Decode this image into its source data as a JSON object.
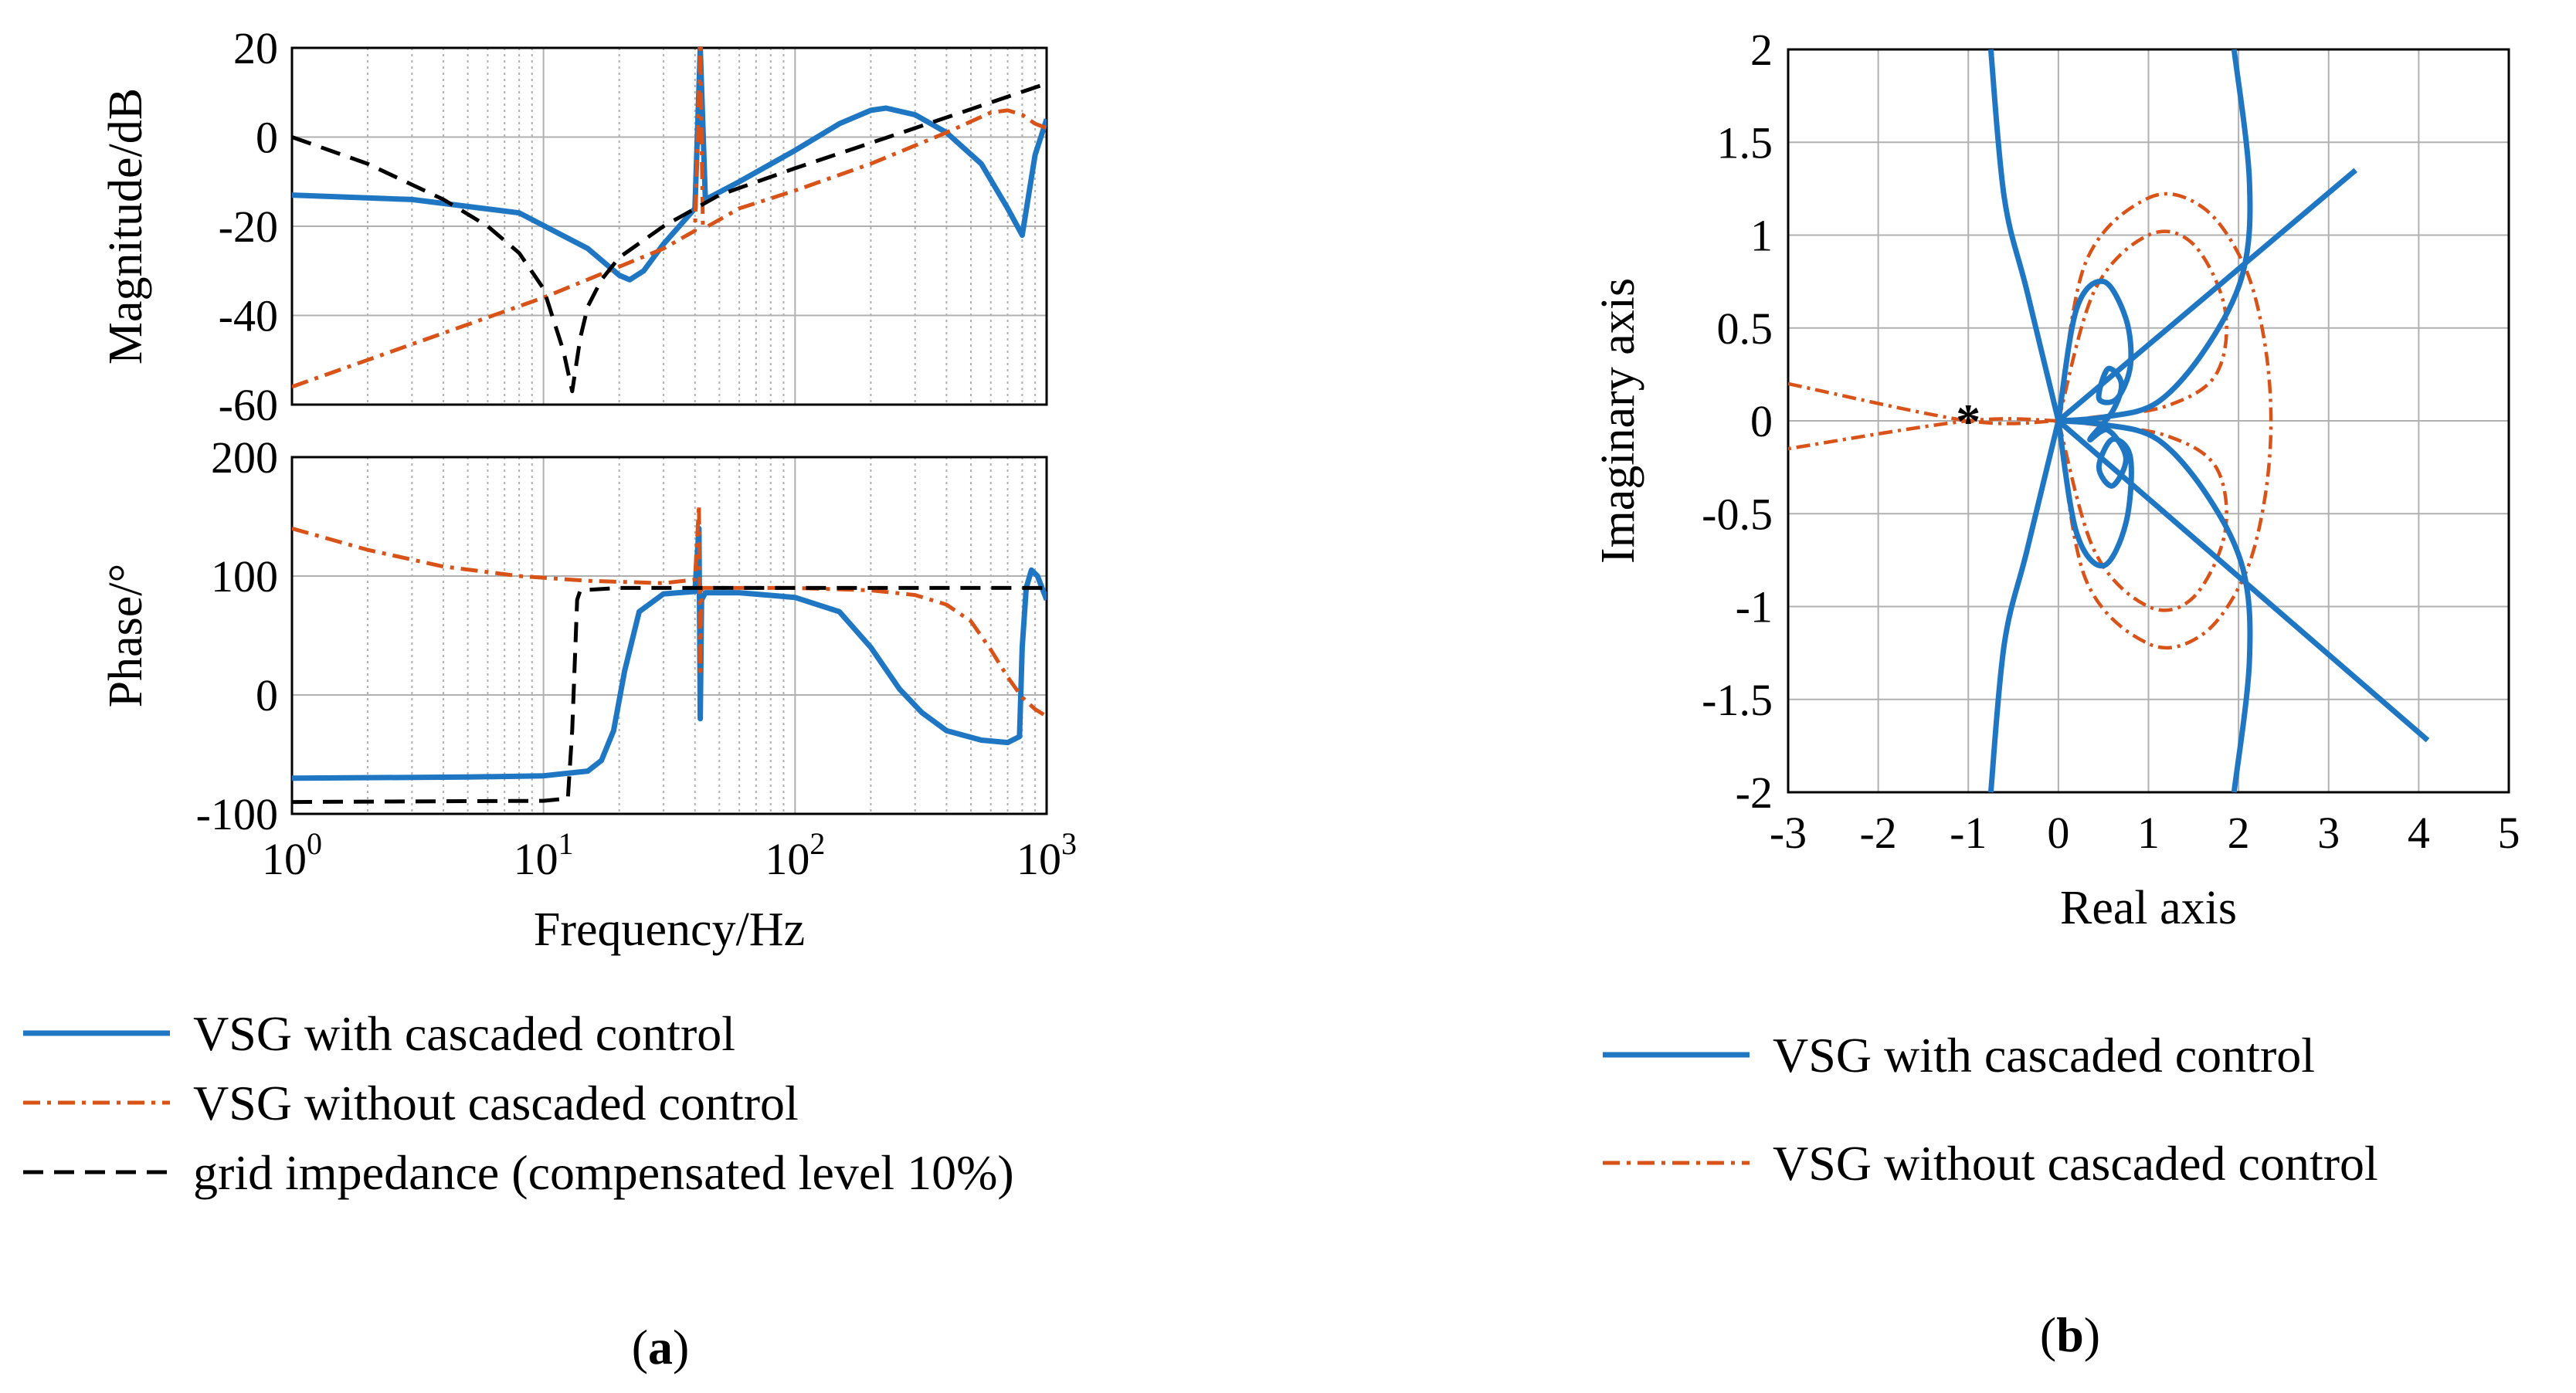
{
  "colors": {
    "blue": "#1f77c4",
    "orange": "#d95319",
    "black": "#000000",
    "grid": "#b0b0b0"
  },
  "chart_data": [
    {
      "type": "line",
      "subplot": "bode-magnitude",
      "panel": "(a)",
      "xscale": "log",
      "xlim": [
        1,
        1000
      ],
      "ylim": [
        -60,
        20
      ],
      "xticks": [
        1,
        10,
        100,
        1000
      ],
      "yticks": [
        20,
        0,
        -20,
        -40,
        -60
      ],
      "ytick_labels": [
        "20",
        "0",
        "-20",
        "-40",
        "-60"
      ],
      "ylabel": "Magnitude/dB",
      "xlabel": "",
      "grid": true,
      "series": [
        {
          "name": "VSG with cascaded control",
          "color": "blue",
          "style": "solid",
          "x": [
            1,
            3,
            8,
            15,
            20,
            22,
            25,
            30,
            40,
            42,
            44,
            60,
            100,
            150,
            200,
            230,
            300,
            400,
            550,
            700,
            800,
            900,
            1000
          ],
          "y": [
            -13,
            -14,
            -17,
            -25,
            -31,
            -32,
            -30,
            -24,
            -16,
            20,
            -14,
            -10,
            -3,
            3,
            6,
            6.5,
            5,
            1,
            -6,
            -16,
            -22,
            -4,
            4
          ]
        },
        {
          "name": "VSG without cascaded control",
          "color": "orange",
          "style": "dashdot",
          "x": [
            1,
            10,
            30,
            40,
            42,
            43,
            45,
            60,
            100,
            200,
            400,
            600,
            700,
            800,
            900,
            1000
          ],
          "y": [
            -56,
            -36,
            -25,
            -21,
            20,
            -20,
            -20,
            -16,
            -12,
            -6,
            1,
            5.5,
            6,
            5,
            3,
            2
          ]
        },
        {
          "name": "grid impedance (compensated level 10%)",
          "color": "black",
          "style": "dashed",
          "x": [
            1,
            2,
            4,
            6,
            8,
            10,
            12,
            13,
            14,
            15,
            17,
            20,
            30,
            50,
            100,
            300,
            1000
          ],
          "y": [
            0,
            -6,
            -14,
            -20,
            -26,
            -34,
            -48,
            -57,
            -45,
            -38,
            -32,
            -27,
            -20,
            -13,
            -7,
            2,
            12
          ]
        }
      ]
    },
    {
      "type": "line",
      "subplot": "bode-phase",
      "panel": "(a)",
      "xscale": "log",
      "xlim": [
        1,
        1000
      ],
      "ylim": [
        -100,
        200
      ],
      "xticks": [
        1,
        10,
        100,
        1000
      ],
      "xtick_bases": [
        "10",
        "10",
        "10",
        "10"
      ],
      "xtick_exponents": [
        "0",
        "1",
        "2",
        "3"
      ],
      "yticks": [
        200,
        100,
        0,
        -100
      ],
      "ytick_labels": [
        "200",
        "100",
        "0",
        "-100"
      ],
      "ylabel": "Phase/°",
      "xlabel": "Frequency/Hz",
      "grid": true,
      "series": [
        {
          "name": "VSG with cascaded control",
          "color": "blue",
          "style": "solid",
          "x": [
            1,
            5,
            10,
            15,
            17,
            19,
            21,
            24,
            30,
            40,
            41.5,
            42,
            42.5,
            44,
            60,
            100,
            150,
            200,
            260,
            320,
            400,
            550,
            700,
            780,
            800,
            830,
            870,
            920,
            1000
          ],
          "y": [
            -70,
            -69,
            -68,
            -64,
            -55,
            -30,
            20,
            70,
            85,
            87,
            140,
            -20,
            80,
            86,
            86,
            82,
            70,
            40,
            5,
            -15,
            -30,
            -38,
            -40,
            -35,
            40,
            90,
            105,
            100,
            80
          ]
        },
        {
          "name": "VSG without cascaded control",
          "color": "orange",
          "style": "dashdot",
          "x": [
            1,
            2,
            4,
            8,
            15,
            30,
            40,
            41.5,
            42,
            42.5,
            44,
            60,
            100,
            200,
            300,
            400,
            500,
            600,
            700,
            800,
            900,
            1000
          ],
          "y": [
            140,
            122,
            108,
            100,
            96,
            94,
            97,
            160,
            20,
            90,
            90,
            90,
            90,
            88,
            84,
            76,
            62,
            38,
            15,
            -2,
            -12,
            -18
          ]
        },
        {
          "name": "grid impedance (compensated level 10%)",
          "color": "black",
          "style": "dashed",
          "x": [
            1,
            10,
            12.5,
            13,
            13.6,
            14,
            20,
            100,
            1000
          ],
          "y": [
            -90,
            -89,
            -87,
            -30,
            80,
            88,
            90,
            90,
            90
          ]
        }
      ]
    },
    {
      "type": "line",
      "subplot": "nyquist",
      "panel": "(b)",
      "xlim": [
        -3,
        5
      ],
      "ylim": [
        -2,
        2
      ],
      "xticks": [
        -3,
        -2,
        -1,
        0,
        1,
        2,
        3,
        4,
        5
      ],
      "xtick_labels": [
        "-3",
        "-2",
        "-1",
        "0",
        "1",
        "2",
        "3",
        "4",
        "5"
      ],
      "yticks": [
        2,
        1.5,
        1,
        0.5,
        0,
        -0.5,
        -1,
        -1.5,
        -2
      ],
      "ytick_labels": [
        "2",
        "1.5",
        "1",
        "0.5",
        "0",
        "-0.5",
        "-1",
        "-1.5",
        "-2"
      ],
      "xlabel": "Real axis",
      "ylabel": "Imaginary axis",
      "grid": true,
      "critical_point": [
        -1,
        0
      ],
      "series": [
        {
          "name": "VSG with cascaded control",
          "color": "blue",
          "style": "solid",
          "curves": [
            [
              [
                -0.75,
                2.0
              ],
              [
                -0.6,
                1.2
              ],
              [
                -0.35,
                0.7
              ],
              [
                0,
                0
              ]
            ],
            [
              [
                0,
                0
              ],
              [
                -0.35,
                -0.7
              ],
              [
                -0.6,
                -1.2
              ],
              [
                -0.75,
                -2.0
              ]
            ],
            [
              [
                1.95,
                2.0
              ],
              [
                2.12,
                1.3
              ],
              [
                2.05,
                0.8
              ],
              [
                1.65,
                0.4
              ],
              [
                1.1,
                0.1
              ],
              [
                0.5,
                0.02
              ],
              [
                0,
                0
              ]
            ],
            [
              [
                0,
                0
              ],
              [
                0.5,
                -0.02
              ],
              [
                1.1,
                -0.1
              ],
              [
                1.65,
                -0.4
              ],
              [
                2.05,
                -0.8
              ],
              [
                2.12,
                -1.3
              ],
              [
                1.95,
                -2.0
              ]
            ],
            [
              [
                0,
                0
              ],
              [
                3.3,
                1.35
              ]
            ],
            [
              [
                0,
                0
              ],
              [
                4.1,
                -1.72
              ]
            ],
            [
              [
                0,
                0
              ],
              [
                0.2,
                0.6
              ],
              [
                0.5,
                0.75
              ],
              [
                0.75,
                0.55
              ],
              [
                0.8,
                0.3
              ],
              [
                0.65,
                0.12
              ],
              [
                0.45,
                0.12
              ],
              [
                0.55,
                0.28
              ],
              [
                0.7,
                0.2
              ],
              [
                0.6,
                0.05
              ],
              [
                0.35,
                -0.1
              ],
              [
                0.55,
                -0.05
              ],
              [
                0.75,
                -0.2
              ],
              [
                0.6,
                -0.35
              ],
              [
                0.45,
                -0.25
              ],
              [
                0.6,
                -0.1
              ],
              [
                0.8,
                -0.2
              ],
              [
                0.75,
                -0.55
              ],
              [
                0.5,
                -0.78
              ],
              [
                0.2,
                -0.6
              ],
              [
                0,
                0
              ]
            ]
          ]
        },
        {
          "name": "VSG without cascaded control",
          "color": "orange",
          "style": "dashdot",
          "curves": [
            [
              [
                -3.0,
                0.2
              ],
              [
                -1.0,
                0.0
              ],
              [
                0,
                0
              ]
            ],
            [
              [
                0,
                0
              ],
              [
                -1.0,
                0.0
              ],
              [
                -3.0,
                -0.15
              ]
            ],
            [
              [
                0,
                0
              ],
              [
                0.3,
                0.85
              ],
              [
                1.0,
                1.2
              ],
              [
                1.6,
                1.15
              ],
              [
                2.05,
                0.85
              ],
              [
                2.28,
                0.45
              ],
              [
                2.36,
                0
              ],
              [
                2.28,
                -0.45
              ],
              [
                2.05,
                -0.85
              ],
              [
                1.6,
                -1.15
              ],
              [
                1.0,
                -1.2
              ],
              [
                0.3,
                -0.85
              ],
              [
                0,
                0
              ]
            ],
            [
              [
                0,
                0
              ],
              [
                0.4,
                0.7
              ],
              [
                1.0,
                1.0
              ],
              [
                1.5,
                0.95
              ],
              [
                1.85,
                0.6
              ],
              [
                1.75,
                0.25
              ],
              [
                1.2,
                0.08
              ],
              [
                0.4,
                0.02
              ],
              [
                0,
                0
              ]
            ],
            [
              [
                0,
                0
              ],
              [
                0.4,
                -0.02
              ],
              [
                1.2,
                -0.08
              ],
              [
                1.75,
                -0.25
              ],
              [
                1.85,
                -0.6
              ],
              [
                1.5,
                -0.95
              ],
              [
                1.0,
                -1.0
              ],
              [
                0.4,
                -0.7
              ],
              [
                0,
                0
              ]
            ]
          ]
        }
      ]
    }
  ],
  "legend_a": [
    {
      "label": "VSG with cascaded control",
      "color": "blue",
      "style": "solid"
    },
    {
      "label": "VSG without cascaded control",
      "color": "orange",
      "style": "dashdot"
    },
    {
      "label": "grid impedance (compensated level 10%)",
      "color": "black",
      "style": "dashed"
    }
  ],
  "legend_b": [
    {
      "label": "VSG with cascaded control",
      "color": "blue",
      "style": "solid"
    },
    {
      "label": "VSG without cascaded control",
      "color": "orange",
      "style": "dashdot"
    }
  ],
  "captions": {
    "a_open": "(",
    "a_letter": "a",
    "a_close": ")",
    "b_open": "(",
    "b_letter": "b",
    "b_close": ")"
  }
}
